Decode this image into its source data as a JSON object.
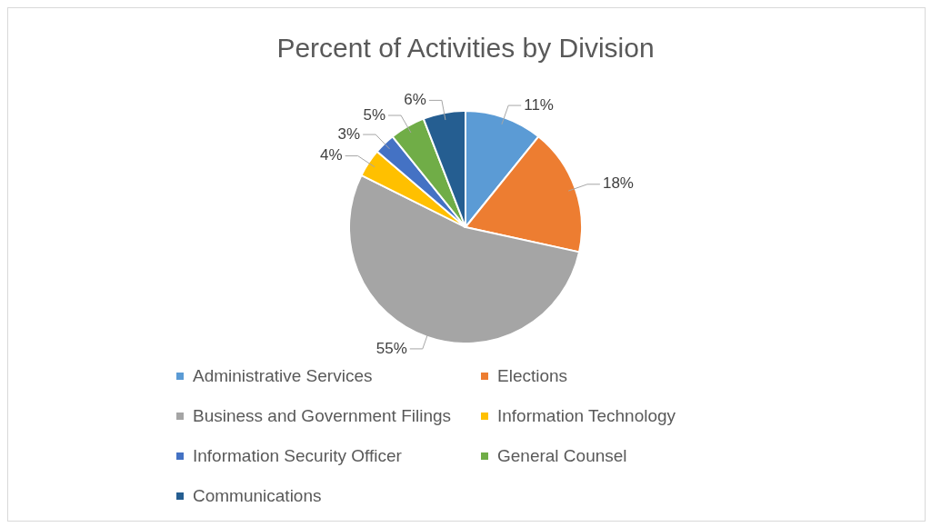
{
  "chart_data": {
    "type": "pie",
    "title": "Percent of Activities by Division",
    "categories": [
      "Administrative Services",
      "Elections",
      "Business and Government Filings",
      "Information Technology",
      "Information Security Officer",
      "General Counsel",
      "Communications"
    ],
    "values": [
      11,
      18,
      55,
      4,
      3,
      5,
      6
    ],
    "value_labels": [
      "11%",
      "18%",
      "55%",
      "4%",
      "3%",
      "5%",
      "6%"
    ],
    "colors": [
      "#5b9bd5",
      "#ed7d31",
      "#a5a5a5",
      "#ffc000",
      "#4472c4",
      "#70ad47",
      "#255e91"
    ],
    "legend": "bottom"
  }
}
